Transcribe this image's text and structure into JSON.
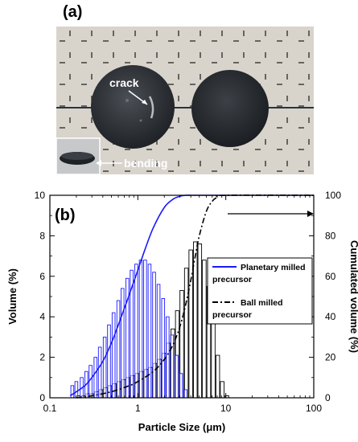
{
  "figure": {
    "panel_a": {
      "label": "(a)",
      "annotation_crack": "crack",
      "annotation_bending": "bending"
    },
    "panel_b": {
      "label": "(b)"
    }
  },
  "chart_data": {
    "type": "bar",
    "xscale": "log",
    "xlabel": "Particle Size (μm)",
    "ylabel": "Volume (%)",
    "y2label": "Cumulated volume (%)",
    "xlim": [
      0.1,
      100
    ],
    "ylim": [
      0,
      10
    ],
    "y2lim": [
      0,
      100
    ],
    "xticks": [
      0.1,
      1,
      10,
      100
    ],
    "xtick_labels": [
      "0.1",
      "1",
      "10",
      "100"
    ],
    "yticks": [
      0,
      2,
      4,
      6,
      8,
      10
    ],
    "ytick_labels": [
      "0",
      "2",
      "4",
      "6",
      "8",
      "10"
    ],
    "y2ticks": [
      0,
      20,
      40,
      60,
      80,
      100
    ],
    "y2tick_labels": [
      "0",
      "20",
      "40",
      "60",
      "80",
      "100"
    ],
    "grid": false,
    "legend_position": "middle-right",
    "colors": {
      "planetary": "#1a1aff",
      "ball": "#000000"
    },
    "series": [
      {
        "name": "Planetary milled precursor",
        "kind": "histogram",
        "bin_centers": [
          0.18,
          0.2,
          0.23,
          0.26,
          0.29,
          0.33,
          0.37,
          0.42,
          0.47,
          0.53,
          0.6,
          0.67,
          0.76,
          0.85,
          0.96,
          1.08,
          1.21,
          1.36,
          1.53,
          1.72,
          1.94,
          2.18,
          2.45,
          2.76,
          3.1,
          3.49
        ],
        "values": [
          0.6,
          0.8,
          1.0,
          1.3,
          1.6,
          2.0,
          2.5,
          3.0,
          3.6,
          4.2,
          4.8,
          5.4,
          5.9,
          6.3,
          6.6,
          6.8,
          6.8,
          6.6,
          6.2,
          5.6,
          4.9,
          4.0,
          3.1,
          2.1,
          1.2,
          0.4
        ]
      },
      {
        "name": "Ball milled precursor",
        "kind": "histogram",
        "bin_centers": [
          0.21,
          0.24,
          0.27,
          0.3,
          0.34,
          0.38,
          0.43,
          0.48,
          0.54,
          0.61,
          0.69,
          0.77,
          0.87,
          0.98,
          1.1,
          1.24,
          1.39,
          1.56,
          1.76,
          1.98,
          2.22,
          2.5,
          2.81,
          3.16,
          3.56,
          4.0,
          4.5,
          5.06,
          5.69,
          6.4,
          7.2,
          8.1,
          9.1,
          10.3
        ],
        "values": [
          0.1,
          0.1,
          0.2,
          0.2,
          0.3,
          0.4,
          0.5,
          0.6,
          0.7,
          0.8,
          0.9,
          1.0,
          1.1,
          1.2,
          1.3,
          1.4,
          1.5,
          1.7,
          1.9,
          2.2,
          2.7,
          3.4,
          4.3,
          5.3,
          6.4,
          7.3,
          7.7,
          7.6,
          6.8,
          5.5,
          3.8,
          2.1,
          0.8,
          0.1
        ]
      },
      {
        "name": "Planetary milled precursor",
        "kind": "cumulative",
        "x": [
          0.17,
          0.2,
          0.25,
          0.3,
          0.4,
          0.5,
          0.6,
          0.8,
          1.0,
          1.2,
          1.5,
          2.0,
          2.5,
          3.0,
          3.5,
          4.0,
          5.0,
          100
        ],
        "y": [
          1,
          3,
          6,
          10,
          18,
          27,
          36,
          51,
          63,
          73,
          84,
          94,
          98,
          99.5,
          100,
          100,
          100,
          100
        ]
      },
      {
        "name": "Ball milled precursor",
        "kind": "cumulative",
        "x": [
          0.2,
          0.3,
          0.5,
          0.8,
          1.0,
          1.5,
          2.0,
          2.5,
          3.0,
          3.5,
          4.0,
          4.5,
          5.0,
          6.0,
          7.0,
          8.0,
          10.0,
          100
        ],
        "y": [
          0,
          1,
          3,
          6,
          8,
          13,
          19,
          26,
          35,
          46,
          58,
          70,
          80,
          92,
          97,
          99,
          100,
          100
        ]
      }
    ]
  }
}
